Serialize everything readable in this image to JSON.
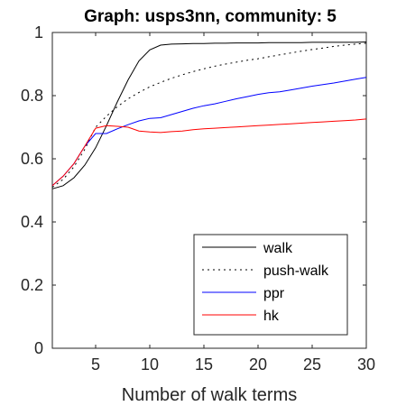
{
  "chart_data": {
    "type": "line",
    "title": "Graph: usps3nn, community: 5",
    "xlabel": "Number of walk terms",
    "ylabel": "",
    "xlim": [
      1,
      30
    ],
    "ylim": [
      0,
      1
    ],
    "xticks": [
      5,
      10,
      15,
      20,
      25,
      30
    ],
    "yticks": [
      0,
      0.2,
      0.4,
      0.6,
      0.8,
      1
    ],
    "ytick_labels": [
      "0",
      "0.2",
      "0.4",
      "0.6",
      "0.8",
      "1"
    ],
    "grid": false,
    "legend_position": "lower-right",
    "x": [
      1,
      2,
      3,
      4,
      5,
      6,
      7,
      8,
      9,
      10,
      11,
      12,
      13,
      14,
      15,
      16,
      17,
      18,
      19,
      20,
      21,
      22,
      23,
      24,
      25,
      26,
      27,
      28,
      29,
      30
    ],
    "series": [
      {
        "name": "walk",
        "color": "#000000",
        "dash": "solid",
        "values": [
          0.505,
          0.515,
          0.54,
          0.58,
          0.635,
          0.705,
          0.78,
          0.85,
          0.91,
          0.945,
          0.96,
          0.963,
          0.964,
          0.965,
          0.965,
          0.966,
          0.966,
          0.967,
          0.967,
          0.967,
          0.968,
          0.968,
          0.968,
          0.968,
          0.969,
          0.969,
          0.969,
          0.969,
          0.969,
          0.97
        ]
      },
      {
        "name": "push-walk",
        "color": "#000000",
        "dash": "dotted",
        "values": [
          0.51,
          0.535,
          0.575,
          0.63,
          0.7,
          0.735,
          0.765,
          0.79,
          0.81,
          0.828,
          0.842,
          0.855,
          0.866,
          0.876,
          0.885,
          0.893,
          0.9,
          0.906,
          0.912,
          0.917,
          0.923,
          0.929,
          0.935,
          0.941,
          0.946,
          0.951,
          0.956,
          0.96,
          0.963,
          0.966
        ]
      },
      {
        "name": "ppr",
        "color": "#0000ff",
        "dash": "solid",
        "values": [
          0.515,
          0.545,
          0.585,
          0.64,
          0.68,
          0.68,
          0.695,
          0.708,
          0.72,
          0.728,
          0.73,
          0.74,
          0.75,
          0.76,
          0.768,
          0.774,
          0.782,
          0.79,
          0.797,
          0.804,
          0.809,
          0.812,
          0.818,
          0.824,
          0.83,
          0.835,
          0.84,
          0.846,
          0.852,
          0.858
        ]
      },
      {
        "name": "hk",
        "color": "#ff0000",
        "dash": "solid",
        "values": [
          0.515,
          0.545,
          0.585,
          0.64,
          0.697,
          0.705,
          0.703,
          0.7,
          0.688,
          0.685,
          0.683,
          0.686,
          0.688,
          0.692,
          0.695,
          0.697,
          0.699,
          0.701,
          0.703,
          0.705,
          0.707,
          0.709,
          0.711,
          0.713,
          0.715,
          0.717,
          0.719,
          0.721,
          0.723,
          0.726
        ]
      }
    ]
  }
}
